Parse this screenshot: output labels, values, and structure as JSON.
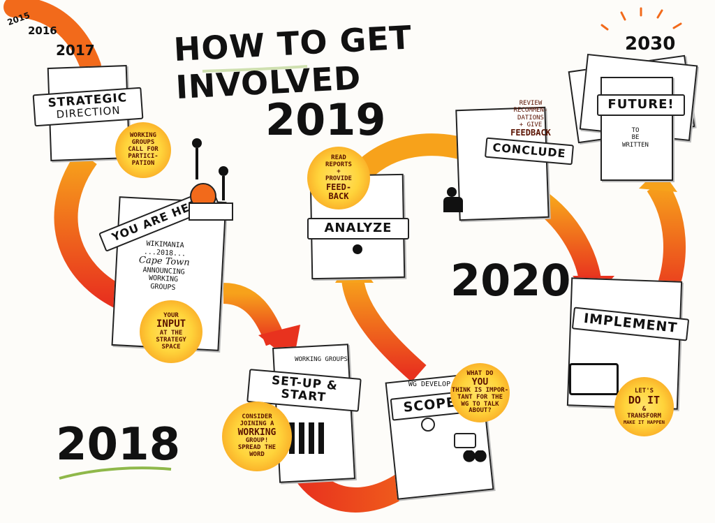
{
  "title": "HOW TO GET INVOLVED",
  "years": {
    "y2015": "2015",
    "y2016": "2016",
    "y2017": "2017",
    "y2018": "2018",
    "y2019": "2019",
    "y2020": "2020",
    "y2030": "2030"
  },
  "stages": {
    "strategic_direction": {
      "line1": "STRATEGIC",
      "line2": "DIRECTION"
    },
    "you_are_here": {
      "banner": "YOU ARE HERE",
      "text": [
        "WIKIMANIA",
        "...2018...",
        "Cape Town",
        "ANNOUNCING",
        "WORKING",
        "GROUPS"
      ]
    },
    "setup_start": {
      "banner": "SET-UP & START",
      "note": "WORKING GROUPS"
    },
    "scope": {
      "banner": "SCOPE",
      "note": "WG DEVELOP"
    },
    "analyze": {
      "banner": "ANALYZE"
    },
    "conclude": {
      "banner": "CONCLUDE"
    },
    "implement": {
      "banner": "IMPLEMENT"
    },
    "future": {
      "banner": "FUTURE!",
      "text": [
        "TO",
        "BE",
        "WRITTEN"
      ]
    }
  },
  "notes": {
    "call_for_participation": [
      "WORKING",
      "GROUPS",
      "CALL FOR",
      "PARTICI-",
      "PATION"
    ],
    "your_input": [
      "YOUR",
      "INPUT",
      "AT THE",
      "STRATEGY",
      "SPACE"
    ],
    "consider_joining": [
      "CONSIDER",
      "JOINING A",
      "WORKING",
      "GROUP!",
      "SPREAD THE",
      "WORD"
    ],
    "what_do_you_think": [
      "WHAT DO",
      "YOU",
      "THINK IS IMPOR-",
      "TANT FOR THE",
      "WG TO TALK",
      "ABOUT?"
    ],
    "read_reports": [
      "READ",
      "REPORTS",
      "+",
      "PROVIDE",
      "FEED-",
      "BACK"
    ],
    "review_recommendations": [
      "REVIEW",
      "RECOMMEN-",
      "DATIONS",
      "+ GIVE",
      "FEEDBACK"
    ],
    "lets_do_it": [
      "LET'S",
      "DO IT",
      "&",
      "TRANSFORM",
      "MAKE IT HAPPEN"
    ]
  },
  "colors": {
    "arrow_red": "#e8321e",
    "arrow_orange": "#f26a1b",
    "arrow_yellow": "#f7a21b",
    "burst_yellow": "#ffd43b"
  }
}
